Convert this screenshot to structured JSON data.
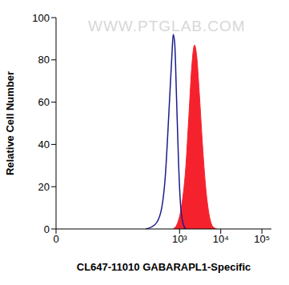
{
  "chart_data": {
    "type": "area",
    "x_label": "CL647-11010 GABARAPL1-Specific",
    "y_label": "Relative Cell Number",
    "annotations": [
      "WWW.PTGLAB.COM"
    ],
    "log": "x",
    "xlim": [
      0,
      170000
    ],
    "xticks": [
      0,
      {
        "value": 1000,
        "label": "10³"
      },
      {
        "value": 10000,
        "label": "10⁴"
      },
      {
        "value": 100000,
        "label": "10⁵"
      }
    ],
    "ylim": [
      0,
      100
    ],
    "yticks": [
      0,
      20,
      40,
      60,
      80,
      100
    ],
    "series": [
      {
        "type": "line",
        "color": "#1c1c8a",
        "x": [
          150,
          250,
          350,
          450,
          550,
          650,
          700,
          760,
          850,
          950,
          1050,
          1200,
          1400
        ],
        "values": [
          0,
          2,
          8,
          25,
          55,
          82,
          92,
          88,
          60,
          30,
          12,
          3,
          0
        ]
      },
      {
        "type": "area",
        "color": "#f5222d",
        "x": [
          700,
          900,
          1100,
          1400,
          1700,
          2000,
          2300,
          2600,
          3000,
          3600,
          4300,
          5200,
          6500,
          8000
        ],
        "values": [
          0,
          3,
          10,
          28,
          55,
          78,
          87,
          82,
          65,
          40,
          20,
          7,
          1,
          0
        ]
      }
    ]
  }
}
